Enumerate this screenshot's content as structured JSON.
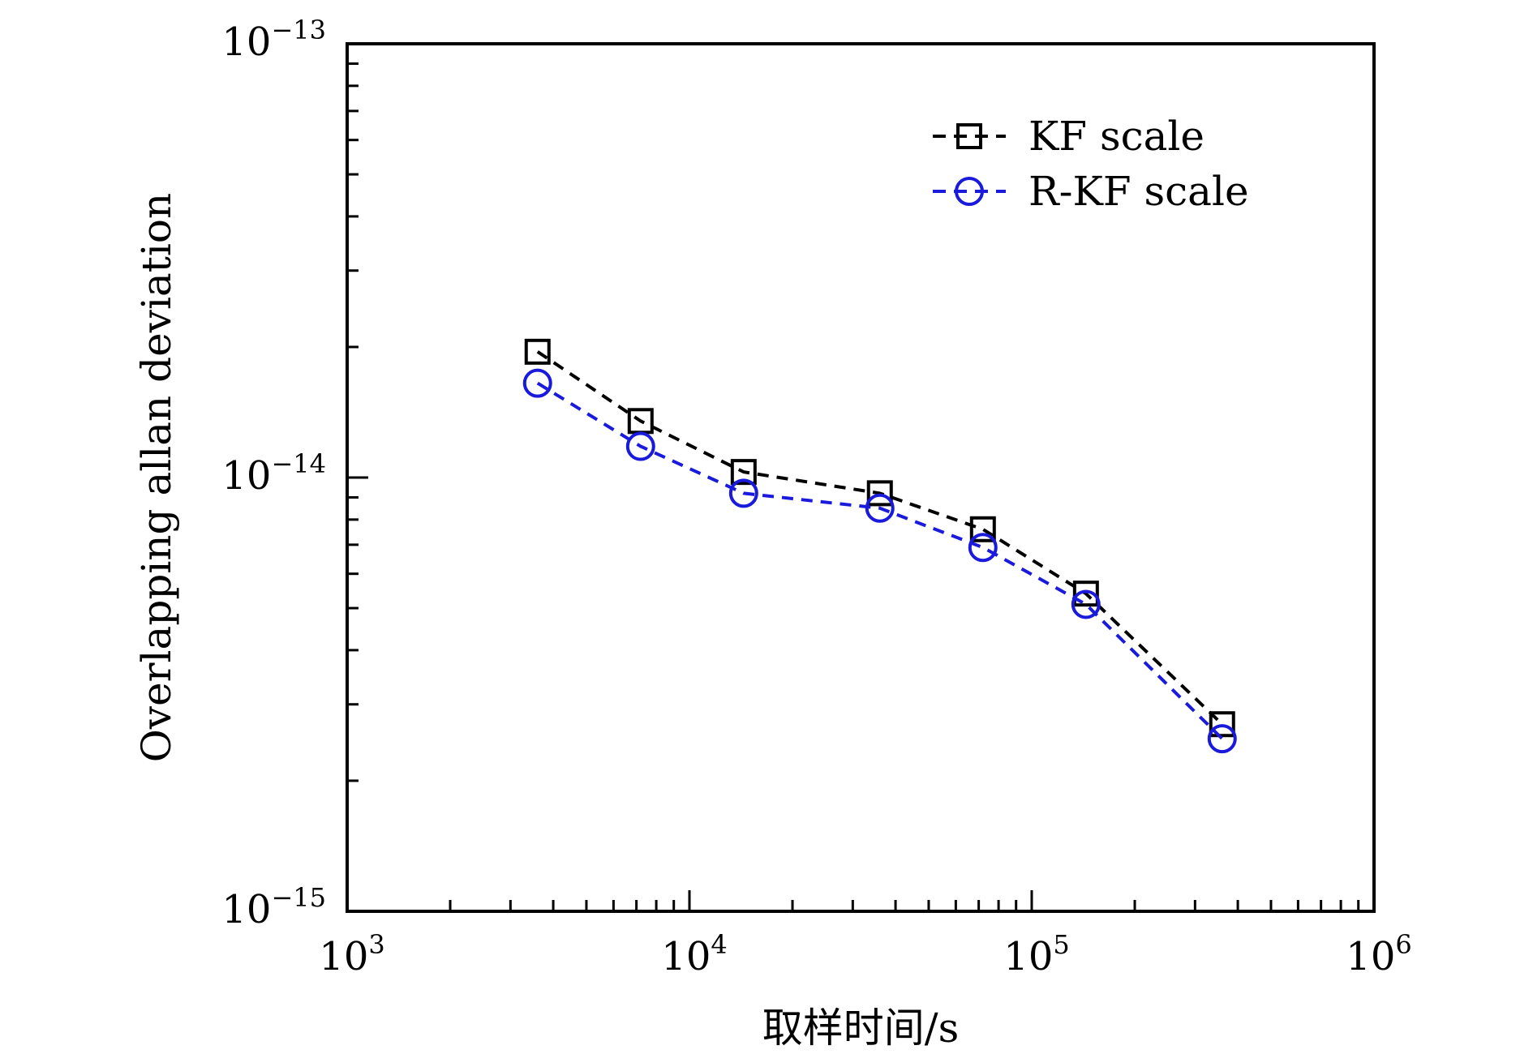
{
  "chart_data": {
    "type": "line",
    "x_scale": "log",
    "y_scale": "log",
    "xlabel": "取样时间/s",
    "ylabel": "Overlapping allan deviation",
    "xlim": [
      1000,
      1000000
    ],
    "ylim": [
      1e-15,
      1e-13
    ],
    "x_ticks": [
      {
        "value": 1000,
        "base": "10",
        "exp": "3"
      },
      {
        "value": 10000,
        "base": "10",
        "exp": "4"
      },
      {
        "value": 100000,
        "base": "10",
        "exp": "5"
      },
      {
        "value": 1000000,
        "base": "10",
        "exp": "6"
      }
    ],
    "y_ticks": [
      {
        "value": 1e-15,
        "base": "10",
        "exp": "−15"
      },
      {
        "value": 1e-14,
        "base": "10",
        "exp": "−14"
      },
      {
        "value": 1e-13,
        "base": "10",
        "exp": "−13"
      }
    ],
    "legend_position": "top-right",
    "grid": false,
    "series": [
      {
        "name": "KF scale",
        "color": "#000000",
        "marker": "square",
        "line_style": "dashed",
        "x": [
          3600,
          7200,
          14400,
          36000,
          72000,
          144000,
          360000
        ],
        "y": [
          1.95e-14,
          1.35e-14,
          1.03e-14,
          9.2e-15,
          7.6e-15,
          5.4e-15,
          2.7e-15
        ]
      },
      {
        "name": "R-KF scale",
        "color": "#1a1adc",
        "marker": "circle",
        "line_style": "dashed",
        "x": [
          3600,
          7200,
          14400,
          36000,
          72000,
          144000,
          360000
        ],
        "y": [
          1.65e-14,
          1.18e-14,
          9.2e-15,
          8.5e-15,
          6.9e-15,
          5.1e-15,
          2.5e-15
        ]
      }
    ]
  }
}
